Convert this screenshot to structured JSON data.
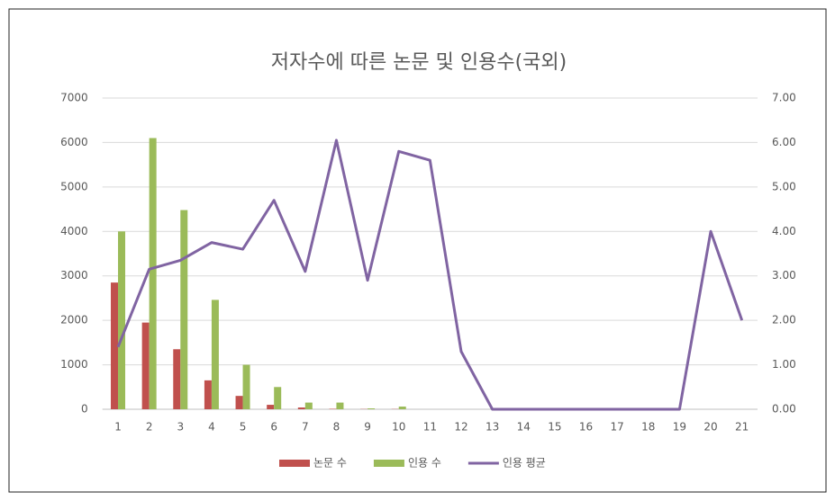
{
  "chart_data": {
    "type": "bar",
    "title": "저자수에 따른 논문 및 인용수(국외)",
    "categories": [
      "1",
      "2",
      "3",
      "4",
      "5",
      "6",
      "7",
      "8",
      "9",
      "10",
      "11",
      "12",
      "13",
      "14",
      "15",
      "16",
      "17",
      "18",
      "19",
      "20",
      "21"
    ],
    "series": [
      {
        "name": "논문 수",
        "color": "#c0504d",
        "values": [
          2850,
          1950,
          1350,
          650,
          300,
          100,
          40,
          10,
          5,
          5,
          0,
          0,
          0,
          0,
          0,
          0,
          0,
          0,
          0,
          0,
          0
        ]
      },
      {
        "name": "인용 수",
        "color": "#9bbb59",
        "values": [
          4000,
          6100,
          4480,
          2460,
          1000,
          500,
          150,
          150,
          20,
          60,
          0,
          0,
          0,
          0,
          0,
          0,
          0,
          0,
          0,
          0,
          0
        ]
      },
      {
        "name": "인용 평균",
        "color": "#8064a2",
        "type": "line",
        "axis": "y2",
        "values": [
          1.4,
          3.15,
          3.35,
          3.75,
          3.6,
          4.7,
          3.1,
          6.05,
          2.9,
          5.8,
          5.6,
          1.3,
          0,
          0,
          0,
          0,
          0,
          0,
          0,
          4.0,
          2.0
        ]
      }
    ],
    "ylim": [
      0,
      7000
    ],
    "yticks": [
      0,
      1000,
      2000,
      3000,
      4000,
      5000,
      6000,
      7000
    ],
    "y2lim": [
      0,
      7
    ],
    "y2ticks": [
      {
        "value": 0,
        "label": "0.00"
      },
      {
        "value": 1,
        "label": "1.00"
      },
      {
        "value": 2,
        "label": "2.00"
      },
      {
        "value": 3,
        "label": "3.00"
      },
      {
        "value": 4,
        "label": "4.00"
      },
      {
        "value": 5,
        "label": "5.00"
      },
      {
        "value": 6,
        "label": "6.00"
      },
      {
        "value": 7,
        "label": "7.00"
      }
    ],
    "grid": true,
    "legend": "bottom"
  }
}
